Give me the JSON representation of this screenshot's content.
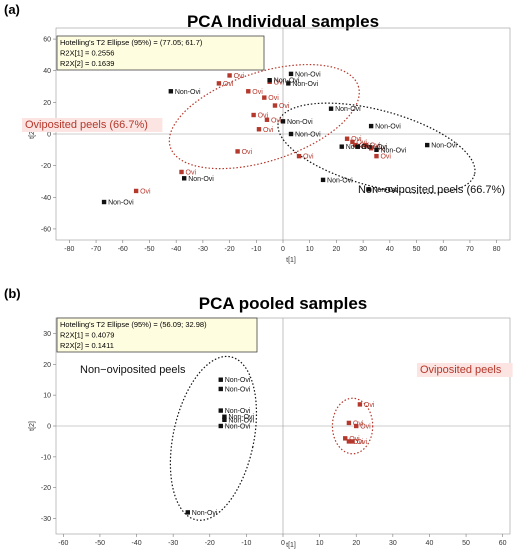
{
  "panel_labels": [
    "(a)",
    "(b)"
  ],
  "colors": {
    "ovi": "#b5382c",
    "non_ovi": "#111111",
    "infobox_bg": "#fffde0",
    "label_bg": "#fbe4e1"
  },
  "chart_data": [
    {
      "type": "scatter",
      "panel": "(a)",
      "title": "PCA Individual samples",
      "xlabel": "t[1]",
      "ylabel": "t[2]",
      "xlim": [
        -85,
        85
      ],
      "ylim": [
        -67,
        67
      ],
      "xticks": [
        -80,
        -70,
        -60,
        -50,
        -40,
        -30,
        -20,
        -10,
        0,
        10,
        20,
        30,
        40,
        50,
        60,
        70,
        80
      ],
      "yticks": [
        -60,
        -40,
        -20,
        0,
        20,
        40,
        60
      ],
      "info": [
        "Hotelling's T2 Ellipse (95%) = (77.05; 61.7)",
        "R2X[1] = 0.2556",
        "R2X[2] = 0.1639"
      ],
      "groups": [
        {
          "name": "Oviposited peels (66.7%)",
          "color": "#b5382c"
        },
        {
          "name": "Non−oviposited peels (66.7%)",
          "color": "#111111"
        }
      ],
      "series": [
        {
          "name": "Ovi",
          "points": [
            [
              -20,
              37
            ],
            [
              -24,
              32
            ],
            [
              -13,
              27
            ],
            [
              -5,
              33
            ],
            [
              -7,
              23
            ],
            [
              -3,
              18
            ],
            [
              -11,
              12
            ],
            [
              -6,
              9
            ],
            [
              -9,
              3
            ],
            [
              -17,
              -11
            ],
            [
              -38,
              -24
            ],
            [
              -55,
              -36
            ],
            [
              24,
              -3
            ],
            [
              26,
              -5
            ],
            [
              27,
              -7
            ],
            [
              28,
              -8
            ],
            [
              31,
              -7
            ],
            [
              33,
              -9
            ],
            [
              35,
              -14
            ],
            [
              6,
              -14
            ]
          ]
        },
        {
          "name": "Non-Ovi",
          "points": [
            [
              -42,
              27
            ],
            [
              -5,
              34
            ],
            [
              3,
              38
            ],
            [
              2,
              32
            ],
            [
              0,
              8
            ],
            [
              3,
              0
            ],
            [
              18,
              16
            ],
            [
              33,
              5
            ],
            [
              22,
              -8
            ],
            [
              28,
              -8
            ],
            [
              35,
              -10
            ],
            [
              54,
              -7
            ],
            [
              15,
              -29
            ],
            [
              32,
              -35
            ],
            [
              -37,
              -28
            ],
            [
              -67,
              -43
            ]
          ]
        }
      ],
      "ellipses": [
        {
          "group": "Oviposited peels (66.7%)",
          "cx": -7,
          "cy": 11,
          "rx": 37,
          "ry": 28,
          "rotation_deg": -18,
          "color": "#b5382c"
        },
        {
          "group": "Non−oviposited peels (66.7%)",
          "cx": 35,
          "cy": -9,
          "rx": 38,
          "ry": 24,
          "rotation_deg": 15,
          "color": "#111111"
        }
      ]
    },
    {
      "type": "scatter",
      "panel": "(b)",
      "title": "PCA pooled samples",
      "xlabel": "t[1]",
      "ylabel": "t[2]",
      "xlim": [
        -62,
        62
      ],
      "ylim": [
        -35,
        35
      ],
      "xticks": [
        -60,
        -50,
        -40,
        -30,
        -20,
        -10,
        0,
        10,
        20,
        30,
        40,
        50,
        60
      ],
      "yticks": [
        -30,
        -20,
        -10,
        0,
        10,
        20,
        30
      ],
      "info": [
        "Hotelling's T2 Ellipse (95%) = (56.09; 32.98)",
        "R2X[1] = 0.4079",
        "R2X[2] = 0.1411"
      ],
      "groups": [
        {
          "name": "Non−oviposited peels",
          "color": "#111111"
        },
        {
          "name": "Oviposited peels",
          "color": "#b5382c"
        }
      ],
      "series": [
        {
          "name": "Non-Ovi",
          "points": [
            [
              -17,
              15
            ],
            [
              -17,
              12
            ],
            [
              -17,
              5
            ],
            [
              -16,
              3
            ],
            [
              -16,
              2
            ],
            [
              -17,
              0
            ],
            [
              -26,
              -28
            ]
          ]
        },
        {
          "name": "Ovi",
          "points": [
            [
              21,
              7
            ],
            [
              18,
              1
            ],
            [
              20,
              0
            ],
            [
              17,
              -4
            ],
            [
              18,
              -5
            ],
            [
              19,
              -5
            ]
          ]
        }
      ],
      "ellipses": [
        {
          "group": "Non−oviposited peels",
          "cx": -19,
          "cy": -4,
          "rx": 11,
          "ry": 27,
          "rotation_deg": 12,
          "color": "#111111"
        },
        {
          "group": "Oviposited peels",
          "cx": 19,
          "cy": 0,
          "rx": 5.5,
          "ry": 9,
          "rotation_deg": 0,
          "color": "#b5382c"
        }
      ]
    }
  ]
}
